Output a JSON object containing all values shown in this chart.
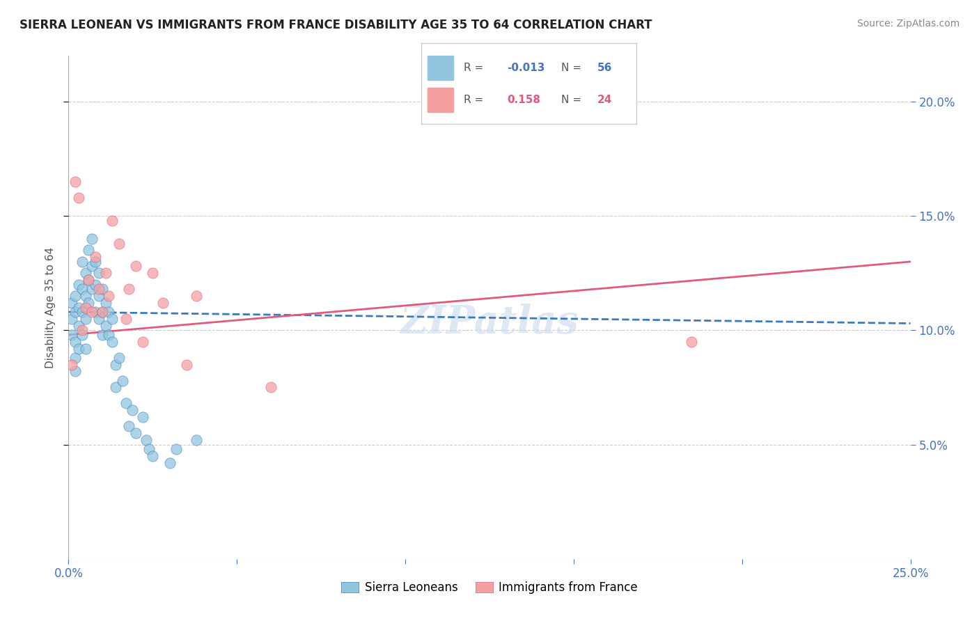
{
  "title": "SIERRA LEONEAN VS IMMIGRANTS FROM FRANCE DISABILITY AGE 35 TO 64 CORRELATION CHART",
  "source_text": "Source: ZipAtlas.com",
  "ylabel": "Disability Age 35 to 64",
  "xlim": [
    0.0,
    0.25
  ],
  "ylim": [
    0.0,
    0.22
  ],
  "xticks": [
    0.0,
    0.05,
    0.1,
    0.15,
    0.2,
    0.25
  ],
  "yticks": [
    0.05,
    0.1,
    0.15,
    0.2
  ],
  "xticklabels": [
    "0.0%",
    "",
    "",
    "",
    "",
    "25.0%"
  ],
  "yticklabels_right": [
    "5.0%",
    "10.0%",
    "15.0%",
    "20.0%"
  ],
  "legend_r_blue": "-0.013",
  "legend_n_blue": "56",
  "legend_r_pink": "0.158",
  "legend_n_pink": "24",
  "blue_color": "#92c5de",
  "pink_color": "#f4a0a0",
  "blue_line_color": "#3a7abf",
  "pink_line_color": "#e05a7a",
  "watermark": "ZIPatlas",
  "blue_x": [
    0.001,
    0.001,
    0.001,
    0.002,
    0.002,
    0.002,
    0.002,
    0.002,
    0.003,
    0.003,
    0.003,
    0.003,
    0.004,
    0.004,
    0.004,
    0.004,
    0.005,
    0.005,
    0.005,
    0.005,
    0.006,
    0.006,
    0.006,
    0.007,
    0.007,
    0.007,
    0.008,
    0.008,
    0.008,
    0.009,
    0.009,
    0.009,
    0.01,
    0.01,
    0.01,
    0.011,
    0.011,
    0.012,
    0.012,
    0.013,
    0.013,
    0.014,
    0.014,
    0.015,
    0.016,
    0.017,
    0.018,
    0.019,
    0.02,
    0.022,
    0.023,
    0.024,
    0.025,
    0.03,
    0.032,
    0.038
  ],
  "blue_y": [
    0.112,
    0.105,
    0.098,
    0.115,
    0.108,
    0.095,
    0.088,
    0.082,
    0.12,
    0.11,
    0.102,
    0.092,
    0.13,
    0.118,
    0.108,
    0.098,
    0.125,
    0.115,
    0.105,
    0.092,
    0.135,
    0.122,
    0.112,
    0.14,
    0.128,
    0.118,
    0.13,
    0.12,
    0.108,
    0.125,
    0.115,
    0.105,
    0.118,
    0.108,
    0.098,
    0.112,
    0.102,
    0.108,
    0.098,
    0.105,
    0.095,
    0.085,
    0.075,
    0.088,
    0.078,
    0.068,
    0.058,
    0.065,
    0.055,
    0.062,
    0.052,
    0.048,
    0.045,
    0.042,
    0.048,
    0.052
  ],
  "pink_x": [
    0.001,
    0.002,
    0.003,
    0.004,
    0.005,
    0.006,
    0.007,
    0.008,
    0.009,
    0.01,
    0.011,
    0.012,
    0.013,
    0.015,
    0.017,
    0.018,
    0.02,
    0.022,
    0.025,
    0.028,
    0.035,
    0.038,
    0.06,
    0.185
  ],
  "pink_y": [
    0.085,
    0.165,
    0.158,
    0.1,
    0.11,
    0.122,
    0.108,
    0.132,
    0.118,
    0.108,
    0.125,
    0.115,
    0.148,
    0.138,
    0.105,
    0.118,
    0.128,
    0.095,
    0.125,
    0.112,
    0.085,
    0.115,
    0.075,
    0.095
  ],
  "blue_line_x0": 0.0,
  "blue_line_x1": 0.25,
  "blue_line_y0": 0.108,
  "blue_line_y1": 0.103,
  "pink_line_x0": 0.0,
  "pink_line_x1": 0.25,
  "pink_line_y0": 0.098,
  "pink_line_y1": 0.13
}
